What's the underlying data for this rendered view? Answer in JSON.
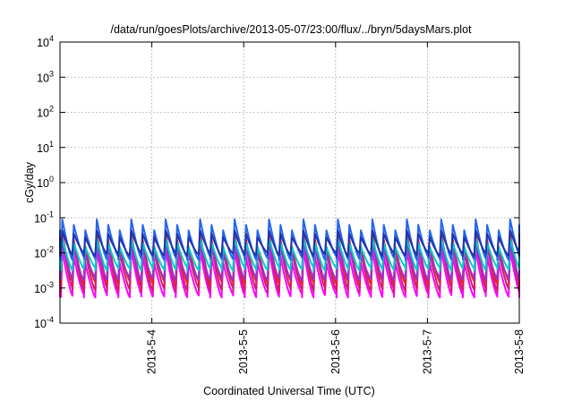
{
  "chart_data": {
    "type": "line",
    "title": "/data/run/goesPlots/archive/2013-05-07/23:00/flux/../bryn/5daysMars.plot",
    "xlabel": "Coordinated Universal Time (UTC)",
    "ylabel": "cGy/day",
    "yscale": "log",
    "ylim": [
      0.0001,
      10000
    ],
    "y_ticks": [
      {
        "value": 0.0001,
        "base": "10",
        "exp": "-4"
      },
      {
        "value": 0.001,
        "base": "10",
        "exp": "-3"
      },
      {
        "value": 0.01,
        "base": "10",
        "exp": "-2"
      },
      {
        "value": 0.1,
        "base": "10",
        "exp": "-1"
      },
      {
        "value": 1,
        "base": "10",
        "exp": "0"
      },
      {
        "value": 10,
        "base": "10",
        "exp": "1"
      },
      {
        "value": 100,
        "base": "10",
        "exp": "2"
      },
      {
        "value": 1000,
        "base": "10",
        "exp": "3"
      },
      {
        "value": 10000,
        "base": "10",
        "exp": "4"
      }
    ],
    "xlim": [
      "2013-05-03 00:00",
      "2013-05-08 00:00"
    ],
    "x_ticks": [
      {
        "value": "2013-05-04 00:00",
        "label": "2013-5-4"
      },
      {
        "value": "2013-05-05 00:00",
        "label": "2013-5-5"
      },
      {
        "value": "2013-05-06 00:00",
        "label": "2013-5-6"
      },
      {
        "value": "2013-05-07 00:00",
        "label": "2013-5-7"
      },
      {
        "value": "2013-05-08 00:00",
        "label": "2013-5-8"
      }
    ],
    "grid": true,
    "legend": "none",
    "oscillation_period_hours": 3,
    "series": [
      {
        "color": "#ff00ff",
        "peak": 0.012,
        "trough": 0.0006
      },
      {
        "color": "#cc2266",
        "peak": 0.016,
        "trough": 0.0009
      },
      {
        "color": "#ee2222",
        "peak": 0.045,
        "trough": 0.0014
      },
      {
        "color": "#9933cc",
        "peak": 0.03,
        "trough": 0.0018
      },
      {
        "color": "#00cccc",
        "peak": 0.022,
        "trough": 0.0035
      },
      {
        "color": "#2266ee",
        "peak": 0.065,
        "trough": 0.007
      },
      {
        "color": "#2233aa",
        "peak": 0.055,
        "trough": 0.009
      }
    ]
  }
}
